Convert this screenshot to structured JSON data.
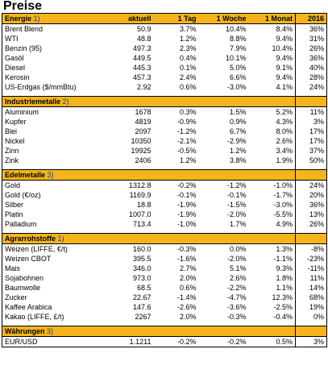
{
  "title": "Preise",
  "columns": [
    "aktuell",
    "1 Tag",
    "1 Woche",
    "1 Monat",
    "2016"
  ],
  "sections": [
    {
      "name": "Energie",
      "num": "1)",
      "show_columns": true,
      "rows": [
        [
          "Brent Blend",
          "50.9",
          "3.7%",
          "10.4%",
          "8.4%",
          "36%"
        ],
        [
          "WTI",
          "48.8",
          "1.2%",
          "8.8%",
          "9.4%",
          "31%"
        ],
        [
          "Benzin (95)",
          "497.3",
          "2.3%",
          "7.9%",
          "10.4%",
          "26%"
        ],
        [
          "Gasöl",
          "449.5",
          "0.4%",
          "10.1%",
          "9.4%",
          "36%"
        ],
        [
          "Diesel",
          "445.3",
          "0.1%",
          "5.0%",
          "9.1%",
          "40%"
        ],
        [
          "Kerosin",
          "457.3",
          "2.4%",
          "6.6%",
          "9.4%",
          "28%"
        ],
        [
          "US-Erdgas ($/mmBtu)",
          "2.92",
          "0.6%",
          "-3.0%",
          "4.1%",
          "24%"
        ]
      ]
    },
    {
      "name": "Industriemetalle",
      "num": "2)",
      "show_columns": false,
      "rows": [
        [
          "Aluminium",
          "1678",
          "0.3%",
          "1.5%",
          "5.2%",
          "11%"
        ],
        [
          "Kupfer",
          "4819",
          "-0.9%",
          "0.9%",
          "4.3%",
          "3%"
        ],
        [
          "Blei",
          "2097",
          "-1.2%",
          "6.7%",
          "8.0%",
          "17%"
        ],
        [
          "Nickel",
          "10350",
          "-2.1%",
          "-2.9%",
          "2.6%",
          "17%"
        ],
        [
          "Zinn",
          "19925",
          "-0.5%",
          "1.2%",
          "3.4%",
          "37%"
        ],
        [
          "Zink",
          "2406",
          "1.2%",
          "3.8%",
          "1.9%",
          "50%"
        ]
      ]
    },
    {
      "name": "Edelmetalle",
      "num": "3)",
      "show_columns": false,
      "rows": [
        [
          "Gold",
          "1312.8",
          "-0.2%",
          "-1.2%",
          "-1.0%",
          "24%"
        ],
        [
          "Gold (€/oz)",
          "1169.9",
          "-0.1%",
          "-0.1%",
          "-1.7%",
          "20%"
        ],
        [
          "Silber",
          "18.8",
          "-1.9%",
          "-1.5%",
          "-3.0%",
          "36%"
        ],
        [
          "Platin",
          "1007.0",
          "-1.9%",
          "-2.0%",
          "-5.5%",
          "13%"
        ],
        [
          "Palladium",
          "713.4",
          "-1.0%",
          "1.7%",
          "4.9%",
          "26%"
        ]
      ]
    },
    {
      "name": "Agrarrohstoffe",
      "num": "1)",
      "show_columns": false,
      "rows": [
        [
          "Weizen (LIFFE, €/t)",
          "160.0",
          "-0.3%",
          "0.0%",
          "1.3%",
          "-8%"
        ],
        [
          "Weizen CBOT",
          "395.5",
          "-1.6%",
          "-2.0%",
          "-1.1%",
          "-23%"
        ],
        [
          "Mais",
          "346.0",
          "2.7%",
          "5.1%",
          "9.3%",
          "-11%"
        ],
        [
          "Sojabohnen",
          "973.0",
          "2.0%",
          "2.6%",
          "1.8%",
          "11%"
        ],
        [
          "Baumwolle",
          "68.5",
          "0.6%",
          "-2.2%",
          "1.1%",
          "14%"
        ],
        [
          "Zucker",
          "22.67",
          "-1.4%",
          "-4.7%",
          "12.3%",
          "68%"
        ],
        [
          "Kaffee Arabica",
          "147.6",
          "-2.6%",
          "-3.6%",
          "-2.5%",
          "19%"
        ],
        [
          "Kakao (LIFFE, £/t)",
          "2267",
          "2.0%",
          "-0.3%",
          "-0.4%",
          "0%"
        ]
      ]
    },
    {
      "name": "Währungen",
      "num": "3)",
      "show_columns": false,
      "rows": [
        [
          "EUR/USD",
          "1.1211",
          "-0.2%",
          "-0.2%",
          "0.5%",
          "3%"
        ]
      ]
    }
  ]
}
